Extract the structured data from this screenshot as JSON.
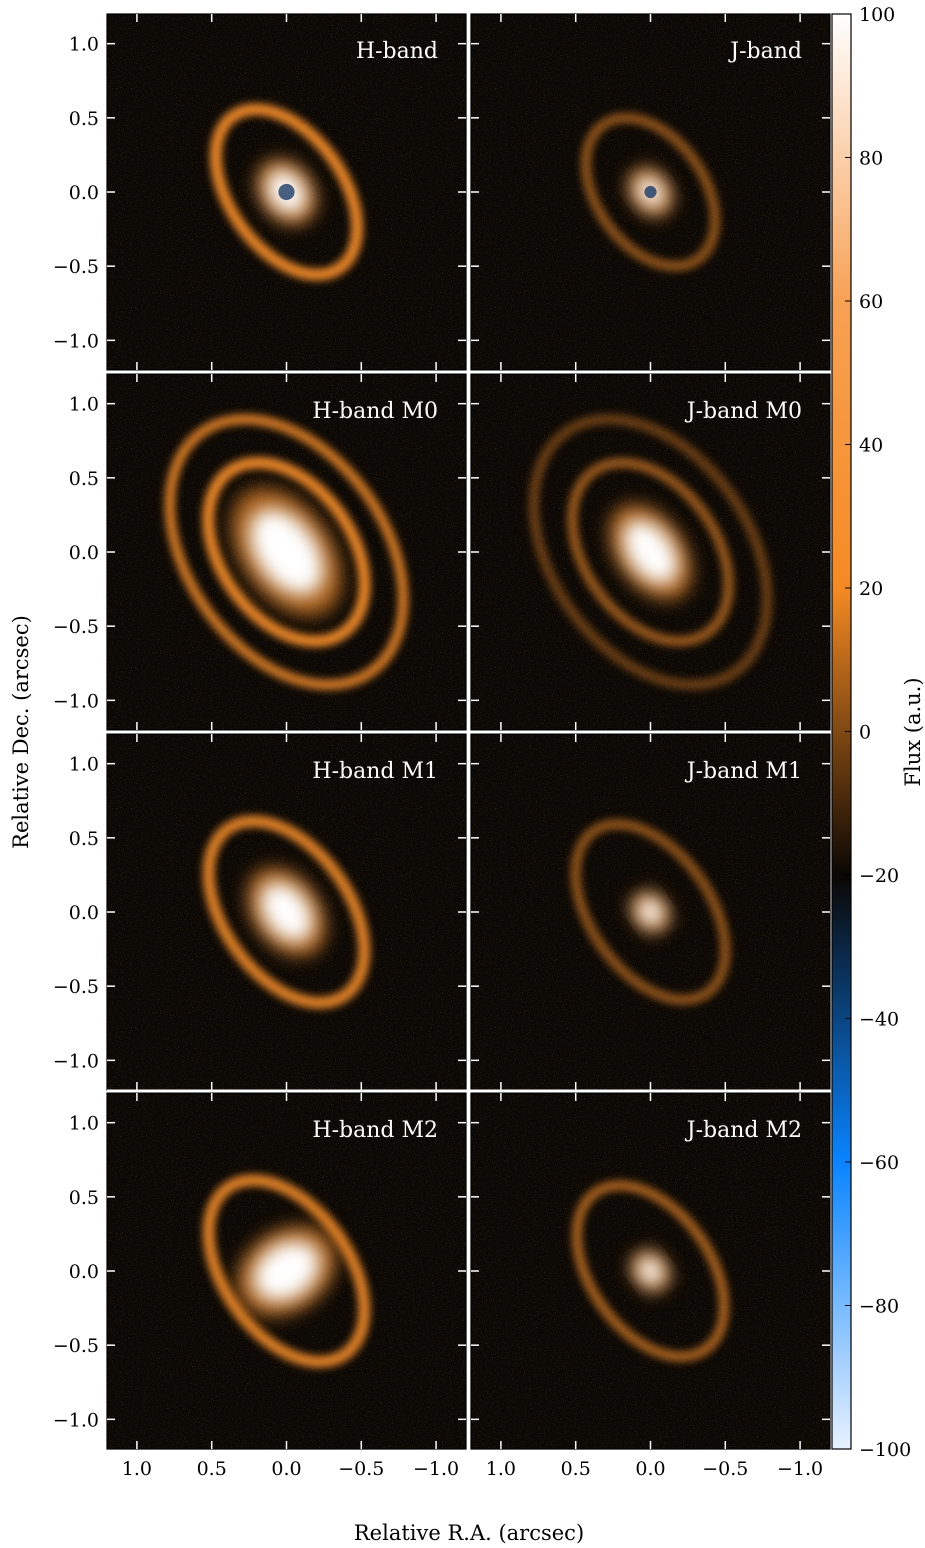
{
  "figure": {
    "xlabel": "Relative R.A. (arcsec)",
    "ylabel": "Relative Dec. (arcsec)",
    "x_ticks": [
      "1.0",
      "0.5",
      "0.0",
      "−0.5",
      "−1.0"
    ],
    "x_tick_values": [
      1.0,
      0.5,
      0.0,
      -0.5,
      -1.0
    ],
    "y_ticks": [
      "1.0",
      "0.5",
      "0.0",
      "−0.5",
      "−1.0"
    ],
    "y_tick_values": [
      1.0,
      0.5,
      0.0,
      -0.5,
      -1.0
    ],
    "axis_range": [
      1.2,
      -1.2
    ],
    "panel_background": "#0b0704",
    "disk_color": "#f08a2a",
    "core_color": "#ffffff"
  },
  "panels": [
    {
      "label": "H-band",
      "kind": "obs_h"
    },
    {
      "label": "J-band",
      "kind": "obs_j"
    },
    {
      "label": "H-band M0",
      "kind": "m0_h"
    },
    {
      "label": "J-band M0",
      "kind": "m0_j"
    },
    {
      "label": "H-band M1",
      "kind": "m1_h"
    },
    {
      "label": "J-band M1",
      "kind": "m1_j"
    },
    {
      "label": "H-band M2",
      "kind": "m2_h"
    },
    {
      "label": "J-band M2",
      "kind": "m2_j"
    }
  ],
  "colorbar": {
    "label": "Flux (a.u.)",
    "ticks": [
      "100",
      "80",
      "60",
      "40",
      "20",
      "0",
      "−20",
      "−40",
      "−60",
      "−80",
      "−100"
    ],
    "tick_values": [
      100,
      80,
      60,
      40,
      20,
      0,
      -20,
      -40,
      -60,
      -80,
      -100
    ],
    "range": [
      -100,
      100
    ],
    "colors": [
      "#ffffff",
      "#f7a155",
      "#f58a23",
      "#0a0603",
      "#0a84ff",
      "#e8f2ff"
    ]
  }
}
